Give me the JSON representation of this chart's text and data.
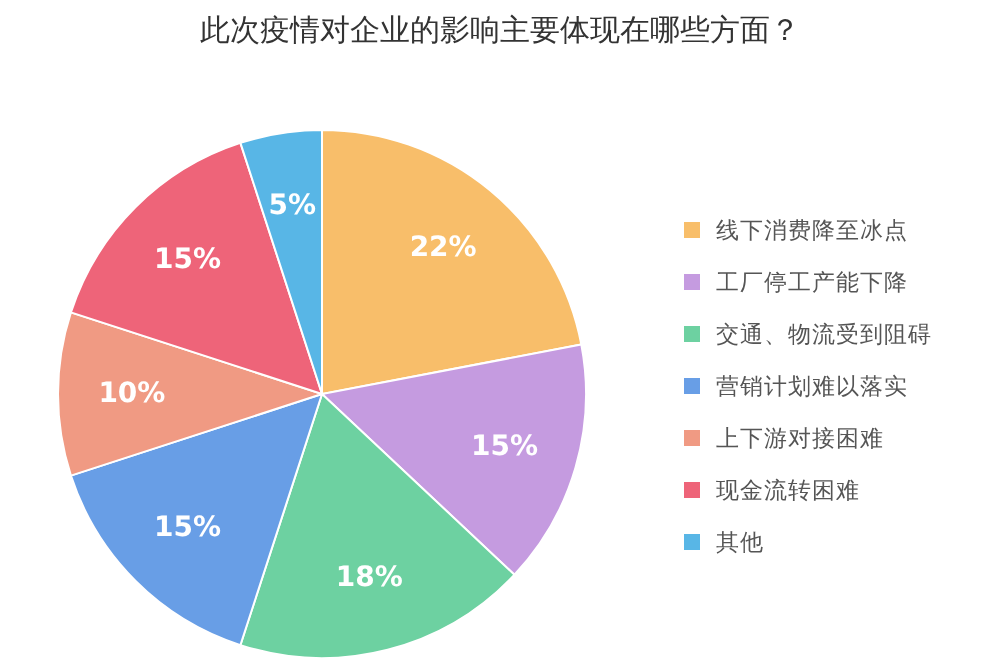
{
  "chart_data": {
    "type": "pie",
    "title": "此次疫情对企业的影响主要体现在哪些方面？",
    "categories": [
      "线下消费降至冰点",
      "工厂停工产能下降",
      "交通、物流受到阻碍",
      "营销计划难以落实",
      "上下游对接困难",
      "现金流转困难",
      "其他"
    ],
    "values": [
      22,
      15,
      18,
      15,
      10,
      15,
      5
    ],
    "colors": [
      "#f8be6a",
      "#c59be0",
      "#6dd1a1",
      "#689ee6",
      "#f09a83",
      "#ee6479",
      "#58b6e6"
    ],
    "value_labels": [
      "22%",
      "15%",
      "18%",
      "15%",
      "10%",
      "15%",
      "5%"
    ],
    "legend": "right"
  }
}
